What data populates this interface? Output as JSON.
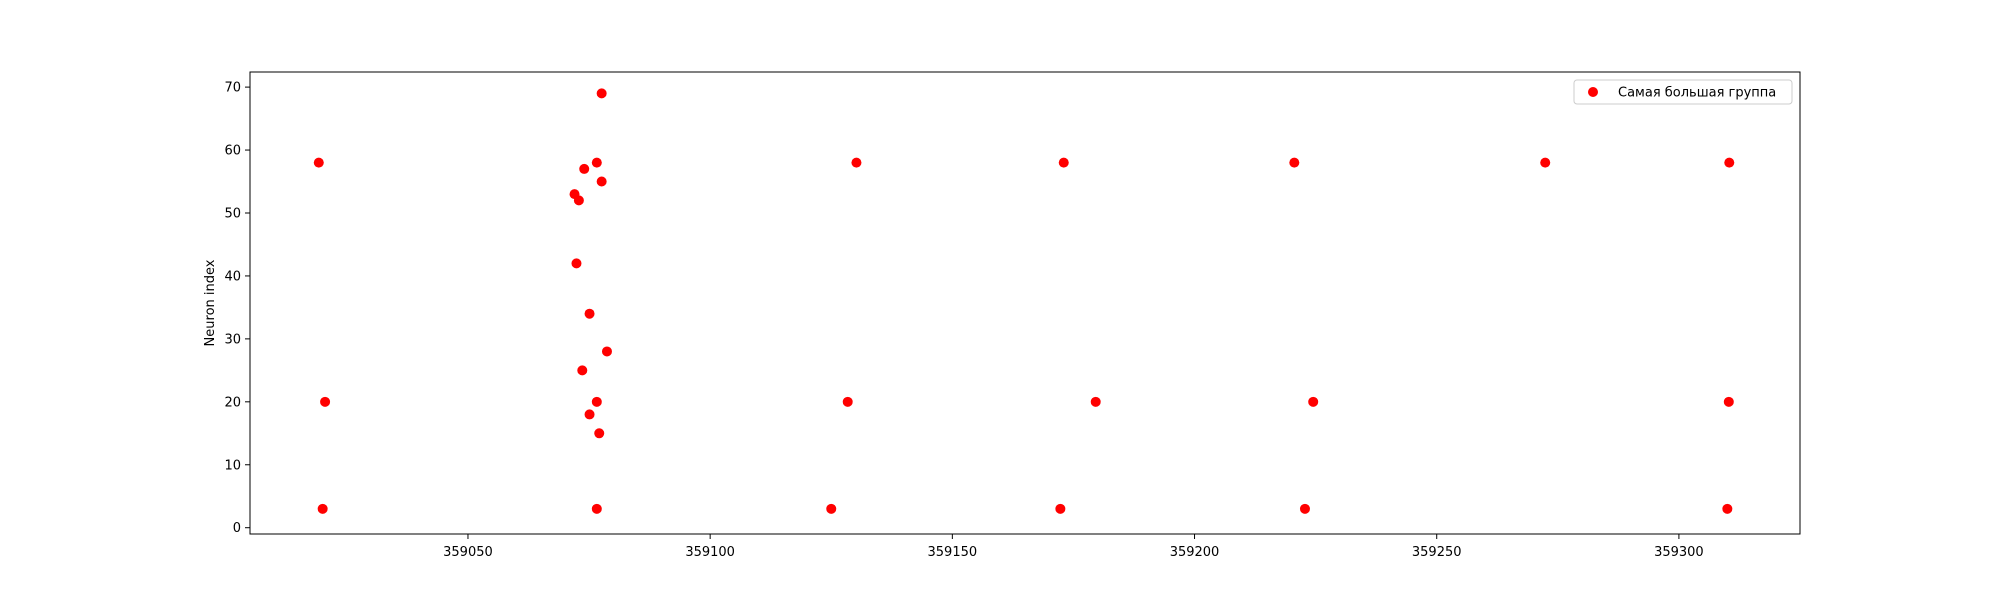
{
  "chart_data": {
    "type": "scatter",
    "title": "",
    "xlabel": "",
    "ylabel": "Neuron index",
    "xlim": [
      359005,
      359325
    ],
    "ylim": [
      -1.0,
      72.4
    ],
    "xticks": [
      359050,
      359100,
      359150,
      359200,
      359250,
      359300
    ],
    "yticks": [
      0,
      10,
      20,
      30,
      40,
      50,
      60,
      70
    ],
    "grid": false,
    "legend": {
      "location": "top-right",
      "entries": [
        "Самая большая группа"
      ]
    },
    "series": [
      {
        "name": "Самая большая группа",
        "color": "#ff0000",
        "marker": "circle",
        "points": [
          {
            "x": 359019.2,
            "y": 58
          },
          {
            "x": 359020.5,
            "y": 20
          },
          {
            "x": 359020.0,
            "y": 3
          },
          {
            "x": 359072.0,
            "y": 53
          },
          {
            "x": 359072.4,
            "y": 42
          },
          {
            "x": 359072.9,
            "y": 52
          },
          {
            "x": 359073.6,
            "y": 25
          },
          {
            "x": 359074.0,
            "y": 57
          },
          {
            "x": 359075.1,
            "y": 34
          },
          {
            "x": 359075.1,
            "y": 18
          },
          {
            "x": 359076.6,
            "y": 58
          },
          {
            "x": 359076.6,
            "y": 20
          },
          {
            "x": 359076.6,
            "y": 3
          },
          {
            "x": 359077.1,
            "y": 15
          },
          {
            "x": 359077.6,
            "y": 69
          },
          {
            "x": 359077.6,
            "y": 55
          },
          {
            "x": 359078.7,
            "y": 28
          },
          {
            "x": 359125.0,
            "y": 3
          },
          {
            "x": 359128.4,
            "y": 20
          },
          {
            "x": 359130.2,
            "y": 58
          },
          {
            "x": 359172.3,
            "y": 3
          },
          {
            "x": 359173.0,
            "y": 58
          },
          {
            "x": 359179.6,
            "y": 20
          },
          {
            "x": 359220.6,
            "y": 58
          },
          {
            "x": 359222.8,
            "y": 3
          },
          {
            "x": 359224.5,
            "y": 20
          },
          {
            "x": 359272.4,
            "y": 58
          },
          {
            "x": 359310.0,
            "y": 3
          },
          {
            "x": 359310.3,
            "y": 20
          },
          {
            "x": 359310.4,
            "y": 58
          }
        ]
      }
    ]
  }
}
